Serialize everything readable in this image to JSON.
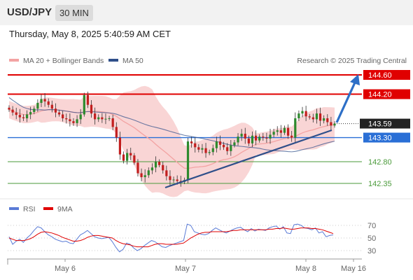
{
  "header": {
    "pair": "USD/JPY",
    "timeframe": "30 MIN",
    "datetime": "Thursday, May 8, 2025 5:40:59 AM CET"
  },
  "legend": {
    "bb_label": "MA 20 + Bollinger Bands",
    "ma50_label": "MA 50",
    "credit": "Research © 2025 Trading Central",
    "rsi_label": "RSI",
    "rsi_ma_label": "9MA"
  },
  "colors": {
    "resistance": "#e00000",
    "support": "#2a6fd6",
    "target": "#2d6fc7",
    "minor_support": "#4a9a3a",
    "bollinger_fill": "#f9d5d5",
    "ma20": "#f3a3a3",
    "ma50": "#2f4f8a",
    "candle_up": "#2d8a2d",
    "candle_down": "#c21e1e",
    "rsi": "#5a7bd6",
    "rsi_ma": "#e00000"
  },
  "chart_data": {
    "type": "candlestick",
    "instrument": "USD/JPY",
    "timeframe": "30 MIN",
    "x_tick_labels": [
      "May 6",
      "May 7",
      "May 8",
      "May 16"
    ],
    "ylim": [
      142.05,
      144.82
    ],
    "levels": [
      {
        "label": "144.60",
        "value": 144.6,
        "kind": "target"
      },
      {
        "label": "144.20",
        "value": 144.2,
        "kind": "resistance"
      },
      {
        "label": "143.59",
        "value": 143.59,
        "kind": "last"
      },
      {
        "label": "143.30",
        "value": 143.3,
        "kind": "pivot"
      },
      {
        "label": "142.80",
        "value": 142.8,
        "kind": "support"
      },
      {
        "label": "142.35",
        "value": 142.35,
        "kind": "support"
      }
    ],
    "closes": [
      143.88,
      143.82,
      143.77,
      143.72,
      143.7,
      143.78,
      143.83,
      143.9,
      144.02,
      144.1,
      144.05,
      143.98,
      143.9,
      143.82,
      143.78,
      143.7,
      143.68,
      143.64,
      143.6,
      143.68,
      143.78,
      144.18,
      143.98,
      143.8,
      143.68,
      143.72,
      143.68,
      143.69,
      143.7,
      143.52,
      143.3,
      142.95,
      142.82,
      142.98,
      142.93,
      142.78,
      142.56,
      142.48,
      142.52,
      142.62,
      142.68,
      142.8,
      142.73,
      142.62,
      142.5,
      142.42,
      142.43,
      142.4,
      142.38,
      142.42,
      143.22,
      143.18,
      143.1,
      143.05,
      143.08,
      142.98,
      143.0,
      143.08,
      143.22,
      143.15,
      143.1,
      143.02,
      143.14,
      143.2,
      143.32,
      143.38,
      143.28,
      143.18,
      143.34,
      143.24,
      143.32,
      143.3,
      143.28,
      143.36,
      143.42,
      143.45,
      143.4,
      143.5,
      143.34,
      143.3,
      143.7,
      143.8,
      143.85,
      143.74,
      143.72,
      143.68,
      143.8,
      143.65,
      143.7,
      143.62,
      143.55,
      143.59
    ],
    "rsi": {
      "ylim": [
        0,
        100
      ],
      "ticks": [
        70,
        50,
        30
      ],
      "values": [
        52,
        40,
        45,
        48,
        43,
        50,
        55,
        62,
        68,
        66,
        60,
        55,
        52,
        48,
        46,
        44,
        45,
        42,
        41,
        48,
        55,
        58,
        62,
        57,
        52,
        50,
        49,
        50,
        51,
        44,
        35,
        28,
        32,
        42,
        40,
        34,
        30,
        33,
        38,
        42,
        46,
        44,
        40,
        36,
        35,
        38,
        40,
        42,
        44,
        46,
        72,
        70,
        60,
        58,
        56,
        55,
        57,
        62,
        66,
        63,
        60,
        58,
        61,
        64,
        66,
        67,
        63,
        60,
        65,
        61,
        64,
        63,
        62,
        66,
        68,
        69,
        64,
        68,
        58,
        57,
        71,
        72,
        70,
        66,
        65,
        63,
        66,
        58,
        60,
        52,
        54,
        55
      ],
      "ma_values": [
        50,
        48,
        46,
        46,
        46,
        47,
        49,
        52,
        56,
        59,
        60,
        59,
        58,
        56,
        54,
        51,
        49,
        47,
        45,
        45,
        46,
        48,
        51,
        53,
        54,
        54,
        53,
        52,
        51,
        50,
        46,
        43,
        41,
        40,
        39,
        37,
        36,
        36,
        36,
        36,
        38,
        40,
        41,
        41,
        40,
        40,
        40,
        40,
        41,
        42,
        46,
        50,
        53,
        56,
        58,
        59,
        59,
        60,
        60,
        60,
        60,
        60,
        61,
        62,
        62,
        63,
        63,
        63,
        63,
        63,
        63,
        63,
        63,
        64,
        64,
        65,
        65,
        66,
        65,
        64,
        64,
        65,
        66,
        66,
        66,
        65,
        65,
        64,
        63,
        61,
        59,
        57
      ]
    },
    "annotations": [
      "Bollinger Bands",
      "MA 20",
      "MA 50",
      "Trendline support",
      "Target arrow to 144.60"
    ]
  }
}
